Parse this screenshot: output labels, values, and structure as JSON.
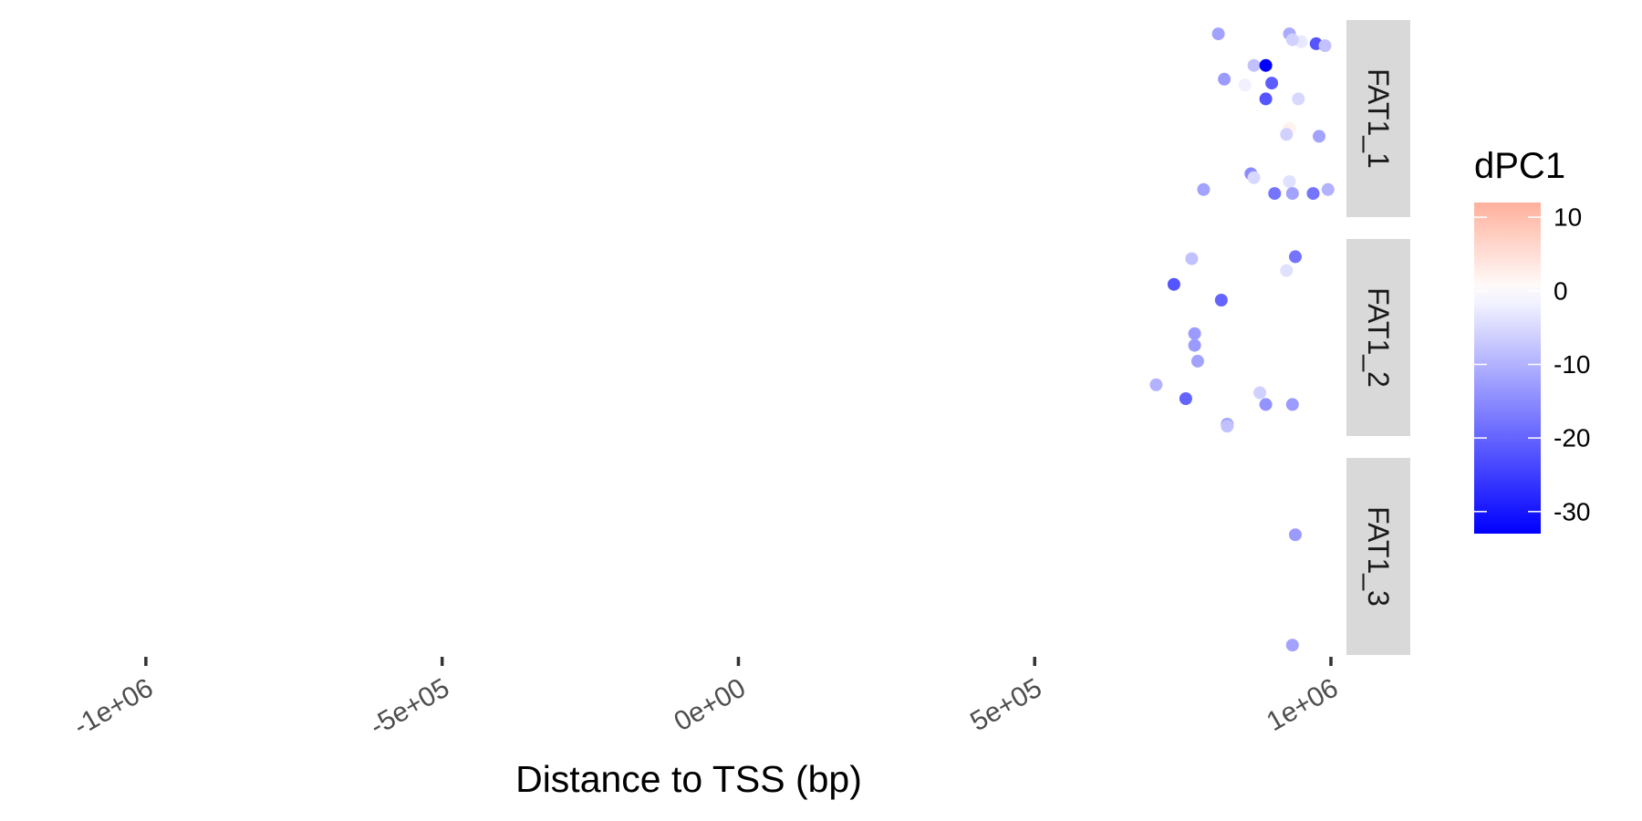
{
  "chart_data": {
    "type": "scatter",
    "xlabel": "Distance to TSS (bp)",
    "xlim": [
      -1200000,
      1020000
    ],
    "x_ticks": [
      {
        "value": -1000000,
        "label": "-1e+06"
      },
      {
        "value": -500000,
        "label": "-5e+05"
      },
      {
        "value": 0,
        "label": "0e+00"
      },
      {
        "value": 500000,
        "label": "5e+05"
      },
      {
        "value": 1000000,
        "label": "1e+06"
      }
    ],
    "grid": false,
    "y_axis": "unlabeled (jittered)",
    "legend": {
      "title": "dPC1",
      "placement": "right",
      "range": [
        -33,
        12
      ],
      "ticks": [
        {
          "value": 10,
          "label": "10"
        },
        {
          "value": 0,
          "label": "0"
        },
        {
          "value": -10,
          "label": "-10"
        },
        {
          "value": -20,
          "label": "-20"
        },
        {
          "value": -30,
          "label": "-30"
        }
      ],
      "low_color": "#0000ff",
      "mid_color": "#ffffff",
      "high_color": "#ffb09c"
    },
    "facets": [
      {
        "label": "FAT1_1",
        "points": [
          {
            "x": 810000,
            "y": 0.93,
            "dpc1": -12
          },
          {
            "x": 930000,
            "y": 0.93,
            "dpc1": -11
          },
          {
            "x": 950000,
            "y": 0.89,
            "dpc1": -3
          },
          {
            "x": 935000,
            "y": 0.9,
            "dpc1": -6
          },
          {
            "x": 975000,
            "y": 0.88,
            "dpc1": -22
          },
          {
            "x": 990000,
            "y": 0.87,
            "dpc1": -8
          },
          {
            "x": 870000,
            "y": 0.77,
            "dpc1": -8
          },
          {
            "x": 890000,
            "y": 0.77,
            "dpc1": -33
          },
          {
            "x": 820000,
            "y": 0.7,
            "dpc1": -13
          },
          {
            "x": 855000,
            "y": 0.67,
            "dpc1": -2
          },
          {
            "x": 900000,
            "y": 0.68,
            "dpc1": -21
          },
          {
            "x": 890000,
            "y": 0.6,
            "dpc1": -22
          },
          {
            "x": 945000,
            "y": 0.6,
            "dpc1": -5
          },
          {
            "x": 930000,
            "y": 0.45,
            "dpc1": 2
          },
          {
            "x": 925000,
            "y": 0.42,
            "dpc1": -6
          },
          {
            "x": 980000,
            "y": 0.41,
            "dpc1": -12
          },
          {
            "x": 865000,
            "y": 0.22,
            "dpc1": -15
          },
          {
            "x": 870000,
            "y": 0.2,
            "dpc1": -5
          },
          {
            "x": 930000,
            "y": 0.18,
            "dpc1": -4
          },
          {
            "x": 785000,
            "y": 0.14,
            "dpc1": -12
          },
          {
            "x": 905000,
            "y": 0.12,
            "dpc1": -18
          },
          {
            "x": 935000,
            "y": 0.12,
            "dpc1": -12
          },
          {
            "x": 970000,
            "y": 0.12,
            "dpc1": -18
          },
          {
            "x": 995000,
            "y": 0.14,
            "dpc1": -10
          }
        ]
      },
      {
        "label": "FAT1_2",
        "points": [
          {
            "x": 940000,
            "y": 0.91,
            "dpc1": -18
          },
          {
            "x": 765000,
            "y": 0.9,
            "dpc1": -8
          },
          {
            "x": 925000,
            "y": 0.84,
            "dpc1": -4
          },
          {
            "x": 735000,
            "y": 0.77,
            "dpc1": -22
          },
          {
            "x": 815000,
            "y": 0.69,
            "dpc1": -20
          },
          {
            "x": 770000,
            "y": 0.52,
            "dpc1": -13
          },
          {
            "x": 770000,
            "y": 0.46,
            "dpc1": -13
          },
          {
            "x": 775000,
            "y": 0.38,
            "dpc1": -12
          },
          {
            "x": 705000,
            "y": 0.26,
            "dpc1": -10
          },
          {
            "x": 880000,
            "y": 0.22,
            "dpc1": -6
          },
          {
            "x": 755000,
            "y": 0.19,
            "dpc1": -20
          },
          {
            "x": 890000,
            "y": 0.16,
            "dpc1": -14
          },
          {
            "x": 935000,
            "y": 0.16,
            "dpc1": -13
          },
          {
            "x": 825000,
            "y": 0.06,
            "dpc1": -12
          },
          {
            "x": 825000,
            "y": 0.05,
            "dpc1": -8
          }
        ]
      },
      {
        "label": "FAT1_3",
        "points": [
          {
            "x": 940000,
            "y": 0.61,
            "dpc1": -13
          },
          {
            "x": 935000,
            "y": 0.05,
            "dpc1": -12
          }
        ]
      }
    ]
  }
}
